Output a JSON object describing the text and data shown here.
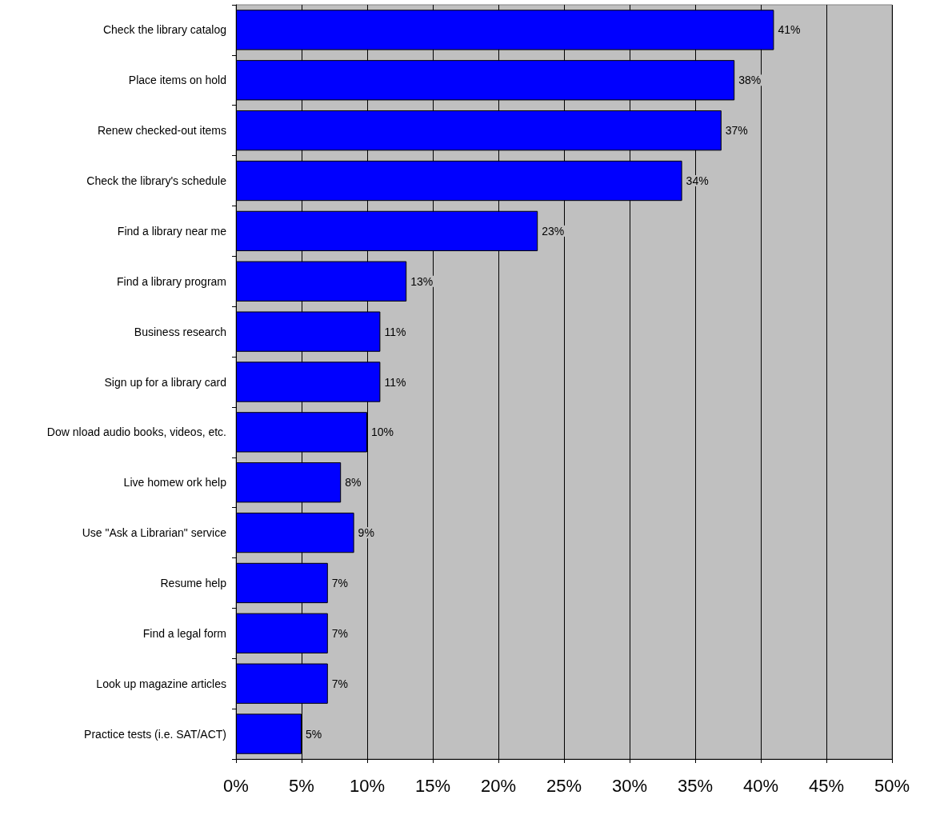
{
  "chart_data": {
    "type": "bar",
    "orientation": "horizontal",
    "categories": [
      "Check the library catalog",
      "Place items on hold",
      "Renew checked-out items",
      "Check the library's schedule",
      "Find a library near me",
      "Find a library program",
      "Business research",
      "Sign up for a library card",
      "Dow nload audio books, videos, etc.",
      "Live homew ork help",
      "Use \"Ask a Librarian\" service",
      "Resume help",
      "Find a legal form",
      "Look up magazine articles",
      "Practice tests (i.e. SAT/ACT)"
    ],
    "values": [
      41,
      38,
      37,
      34,
      23,
      13,
      11,
      11,
      10,
      8,
      9,
      7,
      7,
      7,
      5
    ],
    "value_labels": [
      "41%",
      "38%",
      "37%",
      "34%",
      "23%",
      "13%",
      "11%",
      "11%",
      "10%",
      "8%",
      "9%",
      "7%",
      "7%",
      "7%",
      "5%"
    ],
    "color": "#0000ff",
    "xlim": [
      0,
      50
    ],
    "xticks": [
      {
        "value": 0,
        "label": "0%"
      },
      {
        "value": 5,
        "label": "5%"
      },
      {
        "value": 10,
        "label": "10%"
      },
      {
        "value": 15,
        "label": "15%"
      },
      {
        "value": 20,
        "label": "20%"
      },
      {
        "value": 25,
        "label": "25%"
      },
      {
        "value": 30,
        "label": "30%"
      },
      {
        "value": 35,
        "label": "35%"
      },
      {
        "value": 40,
        "label": "40%"
      },
      {
        "value": 45,
        "label": "45%"
      },
      {
        "value": 50,
        "label": "50%"
      }
    ],
    "grid": "x"
  }
}
